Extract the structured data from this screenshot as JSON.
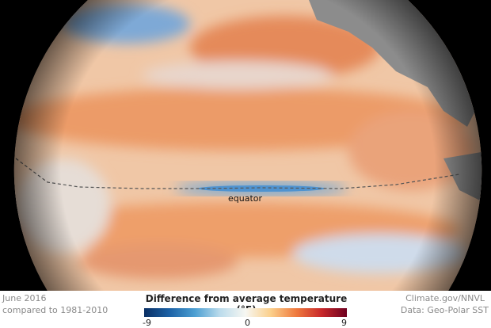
{
  "map": {
    "equator_label": "equator",
    "colors": {
      "warm": "#ef9a62",
      "cool": "#6aa6d8",
      "land": "#8c8c8c",
      "neutral": "#f1e6da"
    }
  },
  "legend": {
    "date": "June 2016",
    "baseline": "compared to 1981-2010",
    "title": "Difference from average temperature (°F)",
    "min": "-9",
    "mid": "0",
    "max": "9",
    "credit": "Climate.gov/NNVL",
    "source": "Data: Geo-Polar SST"
  }
}
